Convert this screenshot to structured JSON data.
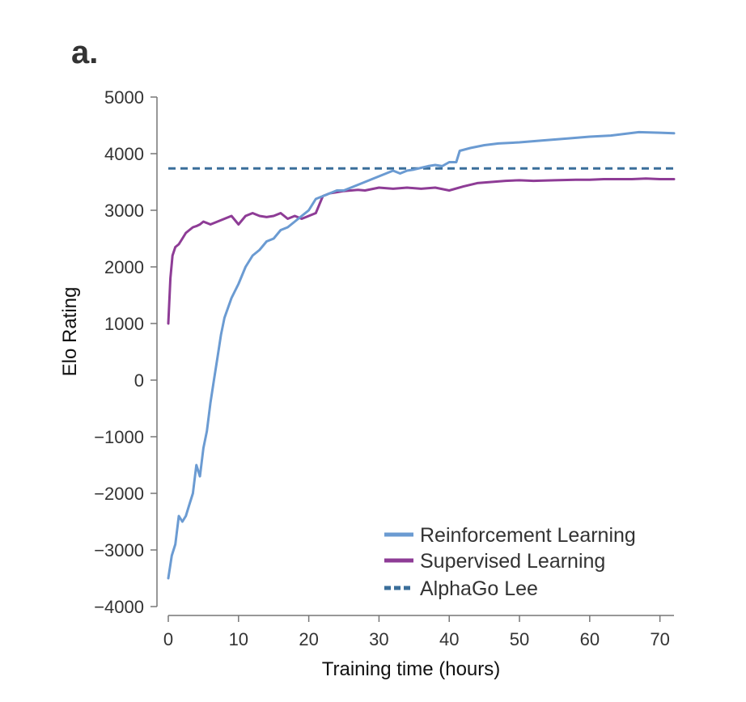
{
  "chart_data": {
    "type": "line",
    "panel_label": "a.",
    "xlabel": "Training time (hours)",
    "ylabel": "Elo Rating",
    "xlim": [
      0,
      72
    ],
    "ylim": [
      -4000,
      5000
    ],
    "xticks": [
      0,
      10,
      20,
      30,
      40,
      50,
      60,
      70
    ],
    "yticks": [
      -4000,
      -3000,
      -2000,
      -1000,
      0,
      1000,
      2000,
      3000,
      4000,
      5000
    ],
    "ytick_labels": [
      "−4000",
      "−3000",
      "−2000",
      "−1000",
      "0",
      "1000",
      "2000",
      "3000",
      "4000",
      "5000"
    ],
    "grid": false,
    "legend_position": "bottom-right",
    "series": [
      {
        "name": "Reinforcement Learning",
        "color": "#6b9bd2",
        "style": "solid",
        "x": [
          0,
          0.5,
          1,
          1.5,
          2,
          2.5,
          3,
          3.5,
          4,
          4.5,
          5,
          5.5,
          6,
          6.5,
          7,
          7.5,
          8,
          9,
          10,
          11,
          12,
          13,
          14,
          15,
          16,
          17,
          18,
          19,
          20,
          21,
          22,
          23,
          24,
          25,
          26,
          27,
          28,
          29,
          30,
          31,
          32,
          33,
          34,
          35,
          36,
          37,
          38,
          39,
          40,
          41,
          41.5,
          43,
          45,
          47,
          50,
          53,
          55,
          57,
          60,
          63,
          65,
          67,
          70,
          72
        ],
        "y": [
          -3500,
          -3100,
          -2900,
          -2400,
          -2500,
          -2400,
          -2200,
          -2000,
          -1500,
          -1700,
          -1200,
          -900,
          -400,
          0,
          400,
          800,
          1100,
          1450,
          1700,
          2000,
          2200,
          2300,
          2450,
          2500,
          2650,
          2700,
          2800,
          2900,
          3000,
          3200,
          3250,
          3300,
          3350,
          3350,
          3400,
          3450,
          3500,
          3550,
          3600,
          3650,
          3700,
          3650,
          3700,
          3720,
          3750,
          3780,
          3800,
          3780,
          3850,
          3850,
          4050,
          4100,
          4150,
          4180,
          4200,
          4230,
          4250,
          4270,
          4300,
          4320,
          4350,
          4380,
          4370,
          4360
        ]
      },
      {
        "name": "Supervised Learning",
        "color": "#8e3c96",
        "style": "solid",
        "x": [
          0,
          0.3,
          0.6,
          1,
          1.5,
          2,
          2.5,
          3,
          3.5,
          4,
          4.5,
          5,
          6,
          7,
          8,
          9,
          10,
          11,
          12,
          13,
          14,
          15,
          16,
          17,
          18,
          19,
          20,
          21,
          22,
          23,
          24,
          25,
          26,
          27,
          28,
          30,
          32,
          34,
          36,
          38,
          40,
          42,
          44,
          46,
          48,
          50,
          52,
          55,
          58,
          60,
          62,
          64,
          66,
          68,
          70,
          72
        ],
        "y": [
          1000,
          1800,
          2200,
          2350,
          2400,
          2500,
          2600,
          2650,
          2700,
          2720,
          2750,
          2800,
          2750,
          2800,
          2850,
          2900,
          2750,
          2900,
          2950,
          2900,
          2880,
          2900,
          2950,
          2850,
          2900,
          2850,
          2900,
          2950,
          3250,
          3300,
          3320,
          3340,
          3350,
          3360,
          3350,
          3400,
          3380,
          3400,
          3380,
          3400,
          3350,
          3420,
          3480,
          3500,
          3520,
          3530,
          3520,
          3530,
          3540,
          3540,
          3550,
          3550,
          3550,
          3560,
          3550,
          3550
        ]
      },
      {
        "name": "AlphaGo Lee",
        "color": "#3a6e9a",
        "style": "dashed",
        "x": [
          0,
          72
        ],
        "y": [
          3740,
          3740
        ]
      }
    ]
  }
}
